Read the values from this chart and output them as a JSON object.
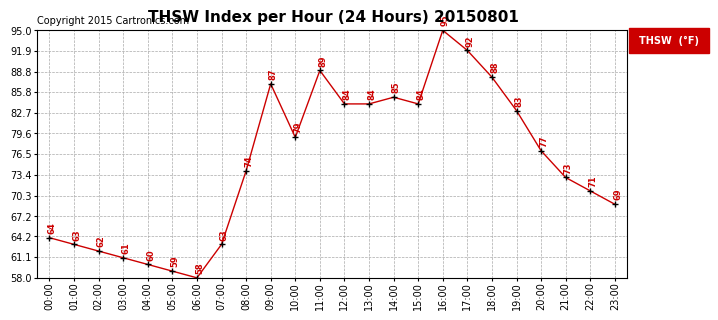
{
  "title": "THSW Index per Hour (24 Hours) 20150801",
  "copyright": "Copyright 2015 Cartronics.com",
  "legend_label": "THSW  (°F)",
  "hours": [
    0,
    1,
    2,
    3,
    4,
    5,
    6,
    7,
    8,
    9,
    10,
    11,
    12,
    13,
    14,
    15,
    16,
    17,
    18,
    19,
    20,
    21,
    22,
    23
  ],
  "values": [
    64,
    63,
    62,
    61,
    60,
    59,
    58,
    63,
    74,
    87,
    79,
    89,
    84,
    84,
    85,
    84,
    95,
    92,
    88,
    83,
    77,
    73,
    71,
    69
  ],
  "ylim": [
    58.0,
    95.0
  ],
  "yticks": [
    58.0,
    61.1,
    64.2,
    67.2,
    70.3,
    73.4,
    76.5,
    79.6,
    82.7,
    85.8,
    88.8,
    91.9,
    95.0
  ],
  "line_color": "#cc0000",
  "marker_color": "#000000",
  "background_color": "#ffffff",
  "grid_color": "#aaaaaa",
  "title_fontsize": 11,
  "copyright_fontsize": 7,
  "label_fontsize": 6,
  "tick_fontsize": 7,
  "legend_bg": "#cc0000",
  "legend_text_color": "#ffffff"
}
